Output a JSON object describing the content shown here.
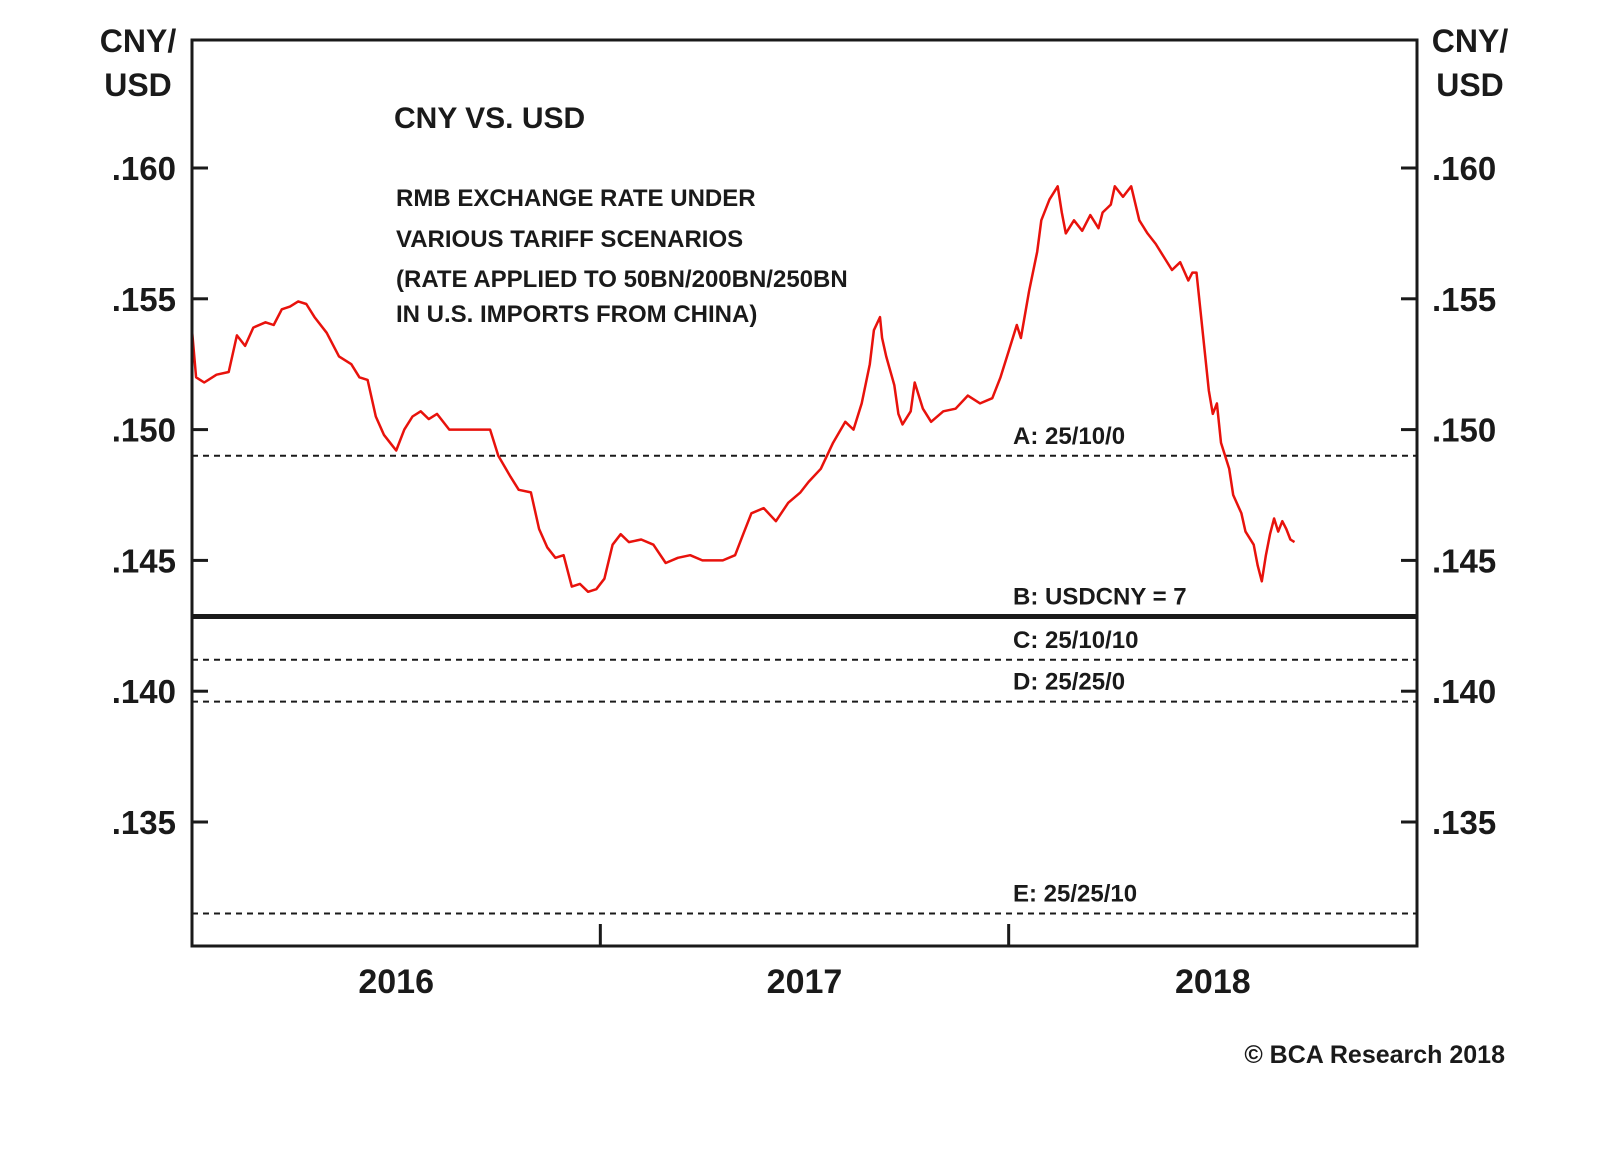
{
  "chart_data": {
    "type": "line",
    "title": "CNY VS. USD",
    "subtitle_lines": [
      "RMB EXCHANGE RATE UNDER",
      "VARIOUS TARIFF SCENARIOS",
      "(RATE APPLIED TO 50BN/200BN/250BN",
      "IN U.S. IMPORTS FROM CHINA)"
    ],
    "ylabel_left": [
      "CNY/",
      "USD"
    ],
    "ylabel_right": [
      "CNY/",
      "USD"
    ],
    "ylim": [
      0.1305,
      0.165
    ],
    "yticks": [
      0.135,
      0.14,
      0.145,
      0.15,
      0.155,
      0.16
    ],
    "ytick_labels": [
      ".135",
      ".140",
      ".145",
      ".150",
      ".155",
      ".160"
    ],
    "xlim": [
      2015.5,
      2018.5
    ],
    "xtick_labels": [
      {
        "label": "2016",
        "x": 2016.0
      },
      {
        "label": "2017",
        "x": 2017.0
      },
      {
        "label": "2018",
        "x": 2018.0
      }
    ],
    "year_boundaries": [
      2016.5,
      2017.5
    ],
    "grid": false,
    "series": [
      {
        "color": "#e8120c",
        "points": [
          [
            2015.5,
            0.1538
          ],
          [
            2015.51,
            0.152
          ],
          [
            2015.53,
            0.1518
          ],
          [
            2015.56,
            0.1521
          ],
          [
            2015.59,
            0.1522
          ],
          [
            2015.61,
            0.1536
          ],
          [
            2015.63,
            0.1532
          ],
          [
            2015.65,
            0.1539
          ],
          [
            2015.68,
            0.1541
          ],
          [
            2015.7,
            0.154
          ],
          [
            2015.72,
            0.1546
          ],
          [
            2015.74,
            0.1547
          ],
          [
            2015.76,
            0.1549
          ],
          [
            2015.78,
            0.1548
          ],
          [
            2015.8,
            0.1543
          ],
          [
            2015.83,
            0.1537
          ],
          [
            2015.86,
            0.1528
          ],
          [
            2015.89,
            0.1525
          ],
          [
            2015.91,
            0.152
          ],
          [
            2015.93,
            0.1519
          ],
          [
            2015.95,
            0.1505
          ],
          [
            2015.97,
            0.1498
          ],
          [
            2015.99,
            0.1494
          ],
          [
            2016.0,
            0.1492
          ],
          [
            2016.02,
            0.15
          ],
          [
            2016.04,
            0.1505
          ],
          [
            2016.06,
            0.1507
          ],
          [
            2016.08,
            0.1504
          ],
          [
            2016.1,
            0.1506
          ],
          [
            2016.13,
            0.15
          ],
          [
            2016.16,
            0.15
          ],
          [
            2016.2,
            0.15
          ],
          [
            2016.23,
            0.15
          ],
          [
            2016.25,
            0.149
          ],
          [
            2016.28,
            0.1482
          ],
          [
            2016.3,
            0.1477
          ],
          [
            2016.33,
            0.1476
          ],
          [
            2016.35,
            0.1462
          ],
          [
            2016.37,
            0.1455
          ],
          [
            2016.39,
            0.1451
          ],
          [
            2016.41,
            0.1452
          ],
          [
            2016.43,
            0.144
          ],
          [
            2016.45,
            0.1441
          ],
          [
            2016.47,
            0.1438
          ],
          [
            2016.49,
            0.1439
          ],
          [
            2016.51,
            0.1443
          ],
          [
            2016.53,
            0.1456
          ],
          [
            2016.55,
            0.146
          ],
          [
            2016.57,
            0.1457
          ],
          [
            2016.6,
            0.1458
          ],
          [
            2016.63,
            0.1456
          ],
          [
            2016.66,
            0.1449
          ],
          [
            2016.69,
            0.1451
          ],
          [
            2016.72,
            0.1452
          ],
          [
            2016.75,
            0.145
          ],
          [
            2016.78,
            0.145
          ],
          [
            2016.8,
            0.145
          ],
          [
            2016.83,
            0.1452
          ],
          [
            2016.85,
            0.146
          ],
          [
            2016.87,
            0.1468
          ],
          [
            2016.9,
            0.147
          ],
          [
            2016.93,
            0.1465
          ],
          [
            2016.96,
            0.1472
          ],
          [
            2016.99,
            0.1476
          ],
          [
            2017.01,
            0.148
          ],
          [
            2017.04,
            0.1485
          ],
          [
            2017.07,
            0.1495
          ],
          [
            2017.1,
            0.1503
          ],
          [
            2017.12,
            0.15
          ],
          [
            2017.14,
            0.151
          ],
          [
            2017.16,
            0.1525
          ],
          [
            2017.17,
            0.1538
          ],
          [
            2017.185,
            0.1543
          ],
          [
            2017.19,
            0.1535
          ],
          [
            2017.2,
            0.1528
          ],
          [
            2017.22,
            0.1517
          ],
          [
            2017.23,
            0.1506
          ],
          [
            2017.24,
            0.1502
          ],
          [
            2017.26,
            0.1507
          ],
          [
            2017.27,
            0.1518
          ],
          [
            2017.29,
            0.1508
          ],
          [
            2017.31,
            0.1503
          ],
          [
            2017.34,
            0.1507
          ],
          [
            2017.37,
            0.1508
          ],
          [
            2017.4,
            0.1513
          ],
          [
            2017.43,
            0.151
          ],
          [
            2017.46,
            0.1512
          ],
          [
            2017.48,
            0.152
          ],
          [
            2017.5,
            0.153
          ],
          [
            2017.52,
            0.154
          ],
          [
            2017.53,
            0.1535
          ],
          [
            2017.55,
            0.1553
          ],
          [
            2017.57,
            0.1568
          ],
          [
            2017.58,
            0.158
          ],
          [
            2017.6,
            0.1588
          ],
          [
            2017.62,
            0.1593
          ],
          [
            2017.63,
            0.1583
          ],
          [
            2017.64,
            0.1575
          ],
          [
            2017.66,
            0.158
          ],
          [
            2017.68,
            0.1576
          ],
          [
            2017.7,
            0.1582
          ],
          [
            2017.72,
            0.1577
          ],
          [
            2017.73,
            0.1583
          ],
          [
            2017.75,
            0.1586
          ],
          [
            2017.76,
            0.1593
          ],
          [
            2017.78,
            0.1589
          ],
          [
            2017.79,
            0.1591
          ],
          [
            2017.8,
            0.1593
          ],
          [
            2017.82,
            0.158
          ],
          [
            2017.84,
            0.1575
          ],
          [
            2017.86,
            0.1571
          ],
          [
            2017.88,
            0.1566
          ],
          [
            2017.9,
            0.1561
          ],
          [
            2017.92,
            0.1564
          ],
          [
            2017.94,
            0.1557
          ],
          [
            2017.95,
            0.156
          ],
          [
            2017.96,
            0.156
          ],
          [
            2017.97,
            0.1545
          ],
          [
            2017.98,
            0.153
          ],
          [
            2017.99,
            0.1515
          ],
          [
            2018.0,
            0.1506
          ],
          [
            2018.01,
            0.151
          ],
          [
            2018.02,
            0.1495
          ],
          [
            2018.04,
            0.1485
          ],
          [
            2018.05,
            0.1475
          ],
          [
            2018.07,
            0.1468
          ],
          [
            2018.08,
            0.1461
          ],
          [
            2018.1,
            0.1456
          ],
          [
            2018.11,
            0.1448
          ],
          [
            2018.12,
            0.1442
          ],
          [
            2018.13,
            0.1452
          ],
          [
            2018.14,
            0.146
          ],
          [
            2018.15,
            0.1466
          ],
          [
            2018.16,
            0.1461
          ],
          [
            2018.17,
            0.1465
          ],
          [
            2018.18,
            0.1462
          ],
          [
            2018.19,
            0.1458
          ],
          [
            2018.2,
            0.1457
          ]
        ]
      }
    ],
    "reference_lines": [
      {
        "label": "A: 25/10/0",
        "y": 0.149,
        "style": "dashed"
      },
      {
        "label": "B: USDCNY = 7",
        "y": 0.142857,
        "style": "solid"
      },
      {
        "label": "C: 25/10/10",
        "y": 0.1412,
        "style": "dashed"
      },
      {
        "label": "D: 25/25/0",
        "y": 0.1396,
        "style": "dashed"
      },
      {
        "label": "E: 25/25/10",
        "y": 0.1315,
        "style": "dashed"
      }
    ],
    "copyright": "© BCA Research 2018"
  }
}
